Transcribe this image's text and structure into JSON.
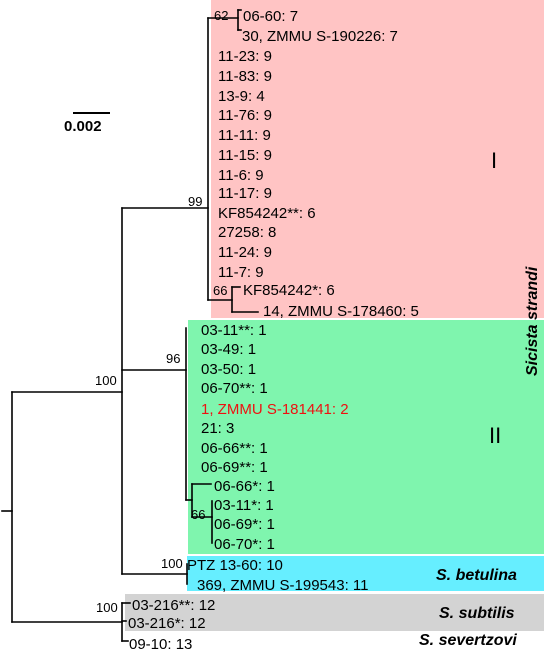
{
  "scale_bar": {
    "label": "0.002"
  },
  "groups": {
    "strandi": {
      "label": "Sicista strandi",
      "color": "#ffc4c4"
    },
    "clade_I": {
      "label": "I"
    },
    "clade_II": {
      "label": "II",
      "color": "#7ff5ae"
    },
    "betulina": {
      "label": "S. betulina",
      "color": "#66eeff"
    },
    "subtilis": {
      "label": "S. subtilis",
      "color": "#d3d3d3"
    },
    "severtzovi": {
      "label": "S. severtzovi"
    }
  },
  "bootstrap": {
    "b62": "62",
    "b66a": "66",
    "b99": "99",
    "b100a": "100",
    "b96": "96",
    "b66b": "66",
    "b100b": "100",
    "b100c": "100"
  },
  "leaves": [
    {
      "label": "06-60: 7"
    },
    {
      "label": "30, ZMMU S-190226: 7"
    },
    {
      "label": "11-23: 9"
    },
    {
      "label": "11-83: 9"
    },
    {
      "label": "13-9: 4"
    },
    {
      "label": "11-76: 9"
    },
    {
      "label": "11-11: 9"
    },
    {
      "label": "11-15: 9"
    },
    {
      "label": "11-6: 9"
    },
    {
      "label": "11-17: 9"
    },
    {
      "label": "KF854242**: 6"
    },
    {
      "label": "27258: 8"
    },
    {
      "label": "11-24: 9"
    },
    {
      "label": "11-7: 9"
    },
    {
      "label": "KF854242*: 6"
    },
    {
      "label": "14, ZMMU S-178460: 5"
    },
    {
      "label": "03-11**: 1"
    },
    {
      "label": "03-49: 1"
    },
    {
      "label": "03-50: 1"
    },
    {
      "label": "06-70**: 1"
    },
    {
      "label": "1, ZMMU S-181441: 2",
      "color": "#ee1111"
    },
    {
      "label": "21: 3"
    },
    {
      "label": "06-66**: 1"
    },
    {
      "label": "06-69**: 1"
    },
    {
      "label": "06-66*: 1"
    },
    {
      "label": "03-11*: 1"
    },
    {
      "label": "06-69*: 1"
    },
    {
      "label": "06-70*: 1"
    },
    {
      "label": "PTZ 13-60: 10"
    },
    {
      "label": "369, ZMMU S-199543: 11"
    },
    {
      "label": "03-216**: 12"
    },
    {
      "label": "03-216*: 12"
    },
    {
      "label": "09-10: 13"
    }
  ]
}
